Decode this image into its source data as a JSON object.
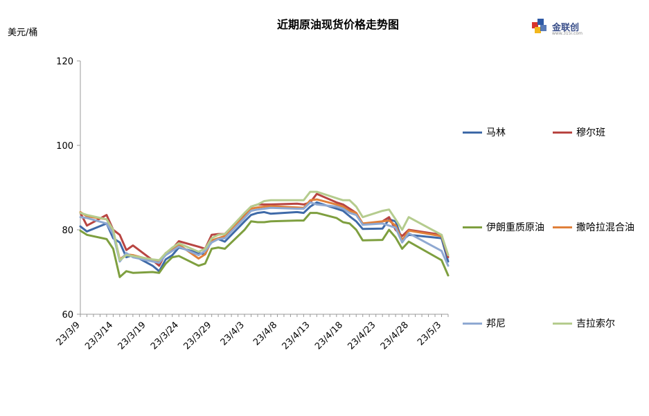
{
  "header": {
    "title": "近期原油现货价格走势图",
    "y_unit": "美元/桶",
    "logo_text": "金联创",
    "logo_sub": "www.315i.com"
  },
  "colors": {
    "malin": "#3f6aa8",
    "murban": "#b84542",
    "iran_heavy": "#7e9f3f",
    "saharan": "#e0803a",
    "bonny": "#8fa9d2",
    "zarzaitine": "#b5cc8e",
    "axis": "#999999"
  },
  "chart_data": {
    "type": "line",
    "title": "近期原油现货价格走势图",
    "ylabel": "美元/桶",
    "xlabel": "",
    "ylim": [
      60,
      120
    ],
    "yticks": [
      60,
      80,
      100,
      120
    ],
    "grid": false,
    "legend": "right",
    "x_tick_labels": [
      "23/3/9",
      "23/3/14",
      "23/3/19",
      "23/3/24",
      "23/3/29",
      "23/4/3",
      "23/4/8",
      "23/4/13",
      "23/4/18",
      "23/4/23",
      "23/4/28",
      "23/5/3"
    ],
    "x_start": "2023-03-09",
    "x_end": "2023-05-04",
    "series": [
      {
        "name": "马林",
        "color_key": "malin",
        "points": [
          [
            "2023-03-09",
            80.8
          ],
          [
            "2023-03-10",
            79.6
          ],
          [
            "2023-03-13",
            81.5
          ],
          [
            "2023-03-14",
            78.0
          ],
          [
            "2023-03-15",
            77.0
          ],
          [
            "2023-03-16",
            73.5
          ],
          [
            "2023-03-17",
            74.0
          ],
          [
            "2023-03-20",
            71.5
          ],
          [
            "2023-03-21",
            70.2
          ],
          [
            "2023-03-22",
            73.0
          ],
          [
            "2023-03-23",
            74.0
          ],
          [
            "2023-03-24",
            75.8
          ],
          [
            "2023-03-27",
            74.5
          ],
          [
            "2023-03-28",
            74.2
          ],
          [
            "2023-03-29",
            77.5
          ],
          [
            "2023-03-30",
            77.8
          ],
          [
            "2023-03-31",
            77.2
          ],
          [
            "2023-04-03",
            82.0
          ],
          [
            "2023-04-04",
            83.5
          ],
          [
            "2023-04-05",
            84.0
          ],
          [
            "2023-04-06",
            84.2
          ],
          [
            "2023-04-07",
            83.8
          ],
          [
            "2023-04-11",
            84.2
          ],
          [
            "2023-04-12",
            84.0
          ],
          [
            "2023-04-13",
            85.5
          ],
          [
            "2023-04-14",
            86.5
          ],
          [
            "2023-04-17",
            85.0
          ],
          [
            "2023-04-18",
            84.5
          ],
          [
            "2023-04-19",
            83.2
          ],
          [
            "2023-04-20",
            82.0
          ],
          [
            "2023-04-21",
            80.2
          ],
          [
            "2023-04-24",
            80.3
          ],
          [
            "2023-04-25",
            82.5
          ],
          [
            "2023-04-26",
            82.0
          ],
          [
            "2023-04-27",
            77.5
          ],
          [
            "2023-04-28",
            78.8
          ],
          [
            "2023-05-03",
            78.0
          ],
          [
            "2023-05-04",
            72.5
          ]
        ]
      },
      {
        "name": "穆尔班",
        "color_key": "murban",
        "points": [
          [
            "2023-03-09",
            84.0
          ],
          [
            "2023-03-10",
            81.0
          ],
          [
            "2023-03-13",
            83.5
          ],
          [
            "2023-03-14",
            80.0
          ],
          [
            "2023-03-15",
            78.8
          ],
          [
            "2023-03-16",
            75.2
          ],
          [
            "2023-03-17",
            76.3
          ],
          [
            "2023-03-20",
            72.8
          ],
          [
            "2023-03-21",
            71.5
          ],
          [
            "2023-03-22",
            74.5
          ],
          [
            "2023-03-23",
            75.5
          ],
          [
            "2023-03-24",
            77.3
          ],
          [
            "2023-03-27",
            76.0
          ],
          [
            "2023-03-28",
            75.5
          ],
          [
            "2023-03-29",
            78.8
          ],
          [
            "2023-03-30",
            79.0
          ],
          [
            "2023-03-31",
            79.0
          ],
          [
            "2023-04-03",
            83.8
          ],
          [
            "2023-04-04",
            85.5
          ],
          [
            "2023-04-05",
            86.0
          ],
          [
            "2023-04-06",
            86.0
          ],
          [
            "2023-04-07",
            86.0
          ],
          [
            "2023-04-11",
            86.2
          ],
          [
            "2023-04-12",
            86.0
          ],
          [
            "2023-04-13",
            86.5
          ],
          [
            "2023-04-14",
            88.5
          ],
          [
            "2023-04-17",
            86.5
          ],
          [
            "2023-04-18",
            86.0
          ],
          [
            "2023-04-19",
            85.0
          ],
          [
            "2023-04-20",
            84.0
          ],
          [
            "2023-04-21",
            81.2
          ],
          [
            "2023-04-24",
            82.0
          ],
          [
            "2023-04-25",
            83.0
          ],
          [
            "2023-04-26",
            80.0
          ],
          [
            "2023-04-27",
            78.5
          ],
          [
            "2023-04-28",
            80.0
          ],
          [
            "2023-05-03",
            78.8
          ],
          [
            "2023-05-04",
            73.5
          ]
        ]
      },
      {
        "name": "伊朗重质原油",
        "color_key": "iran_heavy",
        "points": [
          [
            "2023-03-09",
            79.8
          ],
          [
            "2023-03-10",
            78.8
          ],
          [
            "2023-03-13",
            77.8
          ],
          [
            "2023-03-14",
            75.5
          ],
          [
            "2023-03-15",
            68.8
          ],
          [
            "2023-03-16",
            70.2
          ],
          [
            "2023-03-17",
            69.8
          ],
          [
            "2023-03-20",
            70.0
          ],
          [
            "2023-03-21",
            69.8
          ],
          [
            "2023-03-22",
            72.0
          ],
          [
            "2023-03-23",
            73.5
          ],
          [
            "2023-03-24",
            73.8
          ],
          [
            "2023-03-27",
            71.5
          ],
          [
            "2023-03-28",
            72.0
          ],
          [
            "2023-03-29",
            75.5
          ],
          [
            "2023-03-30",
            75.8
          ],
          [
            "2023-03-31",
            75.5
          ],
          [
            "2023-04-03",
            80.0
          ],
          [
            "2023-04-04",
            82.0
          ],
          [
            "2023-04-05",
            81.8
          ],
          [
            "2023-04-06",
            81.8
          ],
          [
            "2023-04-07",
            82.0
          ],
          [
            "2023-04-11",
            82.2
          ],
          [
            "2023-04-12",
            82.2
          ],
          [
            "2023-04-13",
            84.0
          ],
          [
            "2023-04-14",
            84.0
          ],
          [
            "2023-04-17",
            82.8
          ],
          [
            "2023-04-18",
            81.8
          ],
          [
            "2023-04-19",
            81.5
          ],
          [
            "2023-04-20",
            80.0
          ],
          [
            "2023-04-21",
            77.5
          ],
          [
            "2023-04-24",
            77.6
          ],
          [
            "2023-04-25",
            80.0
          ],
          [
            "2023-04-26",
            78.2
          ],
          [
            "2023-04-27",
            75.5
          ],
          [
            "2023-04-28",
            77.2
          ],
          [
            "2023-05-03",
            72.8
          ],
          [
            "2023-05-04",
            69.2
          ]
        ]
      },
      {
        "name": "撒哈拉混合油",
        "color_key": "saharan",
        "points": [
          [
            "2023-03-09",
            84.2
          ],
          [
            "2023-03-10",
            83.2
          ],
          [
            "2023-03-13",
            82.5
          ],
          [
            "2023-03-14",
            79.8
          ],
          [
            "2023-03-15",
            73.0
          ],
          [
            "2023-03-16",
            74.2
          ],
          [
            "2023-03-17",
            74.0
          ],
          [
            "2023-03-20",
            72.8
          ],
          [
            "2023-03-21",
            72.5
          ],
          [
            "2023-03-22",
            74.5
          ],
          [
            "2023-03-23",
            75.5
          ],
          [
            "2023-03-24",
            76.5
          ],
          [
            "2023-03-27",
            73.2
          ],
          [
            "2023-03-28",
            74.2
          ],
          [
            "2023-03-29",
            77.5
          ],
          [
            "2023-03-30",
            78.0
          ],
          [
            "2023-03-31",
            78.5
          ],
          [
            "2023-04-03",
            83.2
          ],
          [
            "2023-04-04",
            85.0
          ],
          [
            "2023-04-05",
            85.3
          ],
          [
            "2023-04-06",
            85.5
          ],
          [
            "2023-04-07",
            85.6
          ],
          [
            "2023-04-11",
            85.3
          ],
          [
            "2023-04-12",
            85.2
          ],
          [
            "2023-04-13",
            87.0
          ],
          [
            "2023-04-14",
            87.2
          ],
          [
            "2023-04-17",
            86.0
          ],
          [
            "2023-04-18",
            85.5
          ],
          [
            "2023-04-19",
            84.5
          ],
          [
            "2023-04-20",
            84.0
          ],
          [
            "2023-04-21",
            81.5
          ],
          [
            "2023-04-24",
            82.0
          ],
          [
            "2023-04-25",
            82.2
          ],
          [
            "2023-04-26",
            81.0
          ],
          [
            "2023-04-27",
            77.5
          ],
          [
            "2023-04-28",
            79.8
          ],
          [
            "2023-05-03",
            78.5
          ],
          [
            "2023-05-04",
            74.0
          ]
        ]
      },
      {
        "name": "邦尼",
        "color_key": "bonny",
        "points": [
          [
            "2023-03-09",
            83.0
          ],
          [
            "2023-03-10",
            82.8
          ],
          [
            "2023-03-13",
            81.5
          ],
          [
            "2023-03-14",
            79.0
          ],
          [
            "2023-03-15",
            72.5
          ],
          [
            "2023-03-16",
            74.5
          ],
          [
            "2023-03-17",
            73.5
          ],
          [
            "2023-03-20",
            72.5
          ],
          [
            "2023-03-21",
            72.2
          ],
          [
            "2023-03-22",
            74.0
          ],
          [
            "2023-03-23",
            75.0
          ],
          [
            "2023-03-24",
            76.0
          ],
          [
            "2023-03-27",
            74.0
          ],
          [
            "2023-03-28",
            75.0
          ],
          [
            "2023-03-29",
            77.0
          ],
          [
            "2023-03-30",
            77.8
          ],
          [
            "2023-03-31",
            78.0
          ],
          [
            "2023-04-03",
            82.8
          ],
          [
            "2023-04-04",
            84.5
          ],
          [
            "2023-04-05",
            84.8
          ],
          [
            "2023-04-06",
            85.0
          ],
          [
            "2023-04-07",
            85.2
          ],
          [
            "2023-04-11",
            85.0
          ],
          [
            "2023-04-12",
            85.0
          ],
          [
            "2023-04-13",
            86.5
          ],
          [
            "2023-04-14",
            86.0
          ],
          [
            "2023-04-17",
            85.5
          ],
          [
            "2023-04-18",
            85.0
          ],
          [
            "2023-04-19",
            84.0
          ],
          [
            "2023-04-20",
            83.5
          ],
          [
            "2023-04-21",
            81.2
          ],
          [
            "2023-04-24",
            81.5
          ],
          [
            "2023-04-25",
            81.0
          ],
          [
            "2023-04-26",
            80.5
          ],
          [
            "2023-04-27",
            77.0
          ],
          [
            "2023-04-28",
            79.2
          ],
          [
            "2023-05-03",
            75.0
          ],
          [
            "2023-05-04",
            71.5
          ]
        ]
      },
      {
        "name": "吉拉索尔",
        "color_key": "zarzaitine",
        "points": [
          [
            "2023-03-09",
            84.0
          ],
          [
            "2023-03-10",
            83.5
          ],
          [
            "2023-03-13",
            82.5
          ],
          [
            "2023-03-14",
            80.0
          ],
          [
            "2023-03-15",
            72.8
          ],
          [
            "2023-03-16",
            74.0
          ],
          [
            "2023-03-17",
            73.8
          ],
          [
            "2023-03-20",
            73.0
          ],
          [
            "2023-03-21",
            72.8
          ],
          [
            "2023-03-22",
            74.5
          ],
          [
            "2023-03-23",
            75.8
          ],
          [
            "2023-03-24",
            76.8
          ],
          [
            "2023-03-27",
            74.8
          ],
          [
            "2023-03-28",
            75.5
          ],
          [
            "2023-03-29",
            78.0
          ],
          [
            "2023-03-30",
            78.8
          ],
          [
            "2023-03-31",
            79.0
          ],
          [
            "2023-04-03",
            84.0
          ],
          [
            "2023-04-04",
            85.5
          ],
          [
            "2023-04-05",
            86.0
          ],
          [
            "2023-04-06",
            86.8
          ],
          [
            "2023-04-07",
            87.0
          ],
          [
            "2023-04-11",
            87.0
          ],
          [
            "2023-04-12",
            87.0
          ],
          [
            "2023-04-13",
            89.0
          ],
          [
            "2023-04-14",
            89.0
          ],
          [
            "2023-04-17",
            87.5
          ],
          [
            "2023-04-18",
            87.0
          ],
          [
            "2023-04-19",
            87.0
          ],
          [
            "2023-04-20",
            85.5
          ],
          [
            "2023-04-21",
            83.0
          ],
          [
            "2023-04-24",
            84.5
          ],
          [
            "2023-04-25",
            84.8
          ],
          [
            "2023-04-26",
            82.5
          ],
          [
            "2023-04-27",
            80.0
          ],
          [
            "2023-04-28",
            83.0
          ],
          [
            "2023-05-03",
            78.8
          ],
          [
            "2023-05-04",
            74.0
          ]
        ]
      }
    ]
  }
}
